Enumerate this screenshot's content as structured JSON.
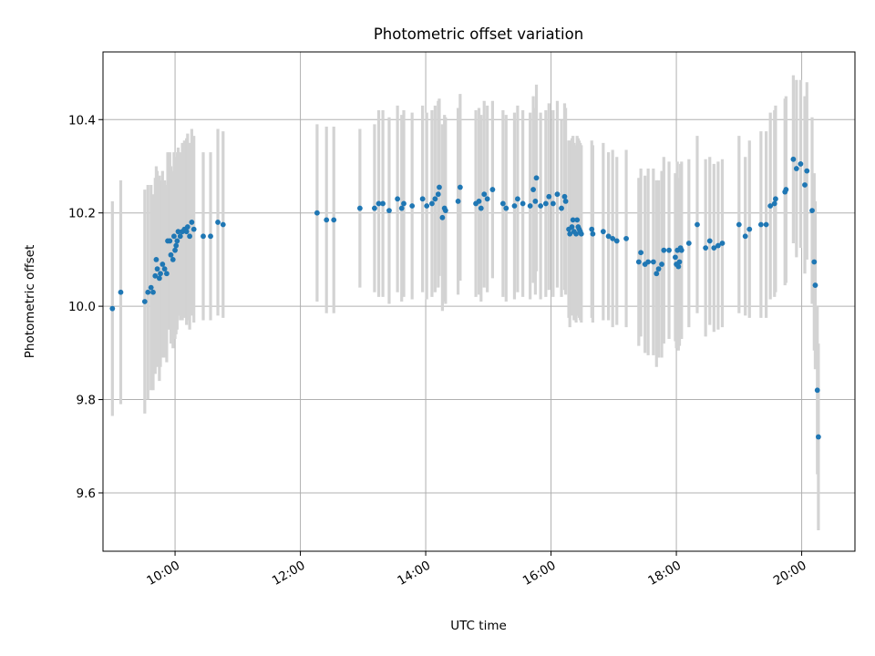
{
  "chart_data": {
    "type": "scatter",
    "title": "Photometric offset variation",
    "xlabel": "UTC time",
    "ylabel": "Photometric offset",
    "x_axis": "time",
    "x_tick_labels": [
      "10:00",
      "12:00",
      "14:00",
      "16:00",
      "18:00",
      "20:00"
    ],
    "y_tick_labels": [
      "9.6",
      "9.8",
      "10.0",
      "10.2",
      "10.4"
    ],
    "xlim": [
      "08:51",
      "20:51"
    ],
    "ylim": [
      9.475,
      10.545
    ],
    "grid": true,
    "legend": "none",
    "colors": {
      "points": "#1f77b4",
      "errorbars": "#d3d3d3"
    },
    "series": [
      {
        "points": [
          [
            "09:00",
            9.995,
            0.23
          ],
          [
            "09:08",
            10.03,
            0.24
          ],
          [
            "09:31",
            10.01,
            0.24
          ],
          [
            "09:34",
            10.03,
            0.23
          ],
          [
            "09:37",
            10.04,
            0.22
          ],
          [
            "09:39",
            10.03,
            0.21
          ],
          [
            "09:41",
            10.065,
            0.21
          ],
          [
            "09:42",
            10.1,
            0.2
          ],
          [
            "09:43",
            10.08,
            0.21
          ],
          [
            "09:45",
            10.06,
            0.22
          ],
          [
            "09:46",
            10.07,
            0.2
          ],
          [
            "09:48",
            10.09,
            0.2
          ],
          [
            "09:50",
            10.08,
            0.19
          ],
          [
            "09:52",
            10.07,
            0.19
          ],
          [
            "09:53",
            10.14,
            0.19
          ],
          [
            "09:55",
            10.14,
            0.19
          ],
          [
            "09:56",
            10.11,
            0.19
          ],
          [
            "09:58",
            10.1,
            0.19
          ],
          [
            "09:59",
            10.15,
            0.18
          ],
          [
            "10:00",
            10.12,
            0.19
          ],
          [
            "10:01",
            10.13,
            0.19
          ],
          [
            "10:02",
            10.14,
            0.19
          ],
          [
            "10:03",
            10.16,
            0.18
          ],
          [
            "10:05",
            10.15,
            0.18
          ],
          [
            "10:07",
            10.16,
            0.19
          ],
          [
            "10:09",
            10.165,
            0.19
          ],
          [
            "10:11",
            10.16,
            0.2
          ],
          [
            "10:12",
            10.17,
            0.2
          ],
          [
            "10:14",
            10.15,
            0.2
          ],
          [
            "10:16",
            10.18,
            0.2
          ],
          [
            "10:18",
            10.165,
            0.2
          ],
          [
            "10:27",
            10.15,
            0.18
          ],
          [
            "10:34",
            10.15,
            0.18
          ],
          [
            "10:41",
            10.18,
            0.2
          ],
          [
            "10:46",
            10.175,
            0.2
          ],
          [
            "12:16",
            10.2,
            0.19
          ],
          [
            "12:25",
            10.185,
            0.2
          ],
          [
            "12:32",
            10.185,
            0.2
          ],
          [
            "12:57",
            10.21,
            0.17
          ],
          [
            "13:11",
            10.21,
            0.18
          ],
          [
            "13:15",
            10.22,
            0.2
          ],
          [
            "13:19",
            10.22,
            0.2
          ],
          [
            "13:25",
            10.205,
            0.2
          ],
          [
            "13:33",
            10.23,
            0.2
          ],
          [
            "13:37",
            10.21,
            0.2
          ],
          [
            "13:39",
            10.22,
            0.2
          ],
          [
            "13:47",
            10.215,
            0.2
          ],
          [
            "13:57",
            10.23,
            0.2
          ],
          [
            "14:01",
            10.215,
            0.2
          ],
          [
            "14:06",
            10.22,
            0.2
          ],
          [
            "14:09",
            10.23,
            0.2
          ],
          [
            "14:12",
            10.24,
            0.2
          ],
          [
            "14:13",
            10.255,
            0.19
          ],
          [
            "14:16",
            10.19,
            0.2
          ],
          [
            "14:18",
            10.21,
            0.2
          ],
          [
            "14:19",
            10.205,
            0.2
          ],
          [
            "14:31",
            10.225,
            0.2
          ],
          [
            "14:33",
            10.255,
            0.2
          ],
          [
            "14:48",
            10.22,
            0.2
          ],
          [
            "14:51",
            10.225,
            0.2
          ],
          [
            "14:53",
            10.21,
            0.2
          ],
          [
            "14:56",
            10.24,
            0.2
          ],
          [
            "14:59",
            10.23,
            0.2
          ],
          [
            "15:04",
            10.25,
            0.19
          ],
          [
            "15:14",
            10.22,
            0.2
          ],
          [
            "15:17",
            10.21,
            0.2
          ],
          [
            "15:25",
            10.215,
            0.2
          ],
          [
            "15:28",
            10.23,
            0.2
          ],
          [
            "15:33",
            10.22,
            0.2
          ],
          [
            "15:40",
            10.215,
            0.2
          ],
          [
            "15:43",
            10.25,
            0.2
          ],
          [
            "15:45",
            10.225,
            0.2
          ],
          [
            "15:46",
            10.275,
            0.2
          ],
          [
            "15:50",
            10.215,
            0.2
          ],
          [
            "15:55",
            10.22,
            0.2
          ],
          [
            "15:58",
            10.235,
            0.2
          ],
          [
            "16:02",
            10.22,
            0.2
          ],
          [
            "16:06",
            10.24,
            0.2
          ],
          [
            "16:10",
            10.21,
            0.19
          ],
          [
            "16:13",
            10.235,
            0.2
          ],
          [
            "16:14",
            10.225,
            0.2
          ],
          [
            "16:17",
            10.165,
            0.19
          ],
          [
            "16:18",
            10.155,
            0.2
          ],
          [
            "16:20",
            10.17,
            0.19
          ],
          [
            "16:21",
            10.185,
            0.18
          ],
          [
            "16:22",
            10.16,
            0.19
          ],
          [
            "16:24",
            10.155,
            0.19
          ],
          [
            "16:25",
            10.185,
            0.18
          ],
          [
            "16:26",
            10.17,
            0.19
          ],
          [
            "16:27",
            10.165,
            0.19
          ],
          [
            "16:28",
            10.16,
            0.19
          ],
          [
            "16:29",
            10.155,
            0.19
          ],
          [
            "16:39",
            10.165,
            0.19
          ],
          [
            "16:40",
            10.155,
            0.19
          ],
          [
            "16:50",
            10.16,
            0.19
          ],
          [
            "16:55",
            10.15,
            0.18
          ],
          [
            "16:59",
            10.145,
            0.19
          ],
          [
            "17:03",
            10.14,
            0.18
          ],
          [
            "17:12",
            10.145,
            0.19
          ],
          [
            "17:24",
            10.095,
            0.18
          ],
          [
            "17:26",
            10.115,
            0.18
          ],
          [
            "17:30",
            10.09,
            0.19
          ],
          [
            "17:33",
            10.095,
            0.2
          ],
          [
            "17:38",
            10.095,
            0.2
          ],
          [
            "17:41",
            10.07,
            0.2
          ],
          [
            "17:43",
            10.08,
            0.19
          ],
          [
            "17:46",
            10.09,
            0.2
          ],
          [
            "17:48",
            10.12,
            0.2
          ],
          [
            "17:53",
            10.12,
            0.19
          ],
          [
            "17:59",
            10.105,
            0.18
          ],
          [
            "18:00",
            10.09,
            0.18
          ],
          [
            "18:01",
            10.12,
            0.19
          ],
          [
            "18:02",
            10.085,
            0.18
          ],
          [
            "18:03",
            10.095,
            0.18
          ],
          [
            "18:04",
            10.125,
            0.18
          ],
          [
            "18:05",
            10.12,
            0.19
          ],
          [
            "18:12",
            10.135,
            0.18
          ],
          [
            "18:20",
            10.175,
            0.19
          ],
          [
            "18:28",
            10.125,
            0.19
          ],
          [
            "18:32",
            10.14,
            0.18
          ],
          [
            "18:36",
            10.125,
            0.18
          ],
          [
            "18:40",
            10.13,
            0.18
          ],
          [
            "18:44",
            10.135,
            0.18
          ],
          [
            "19:00",
            10.175,
            0.19
          ],
          [
            "19:06",
            10.15,
            0.17
          ],
          [
            "19:10",
            10.165,
            0.19
          ],
          [
            "19:21",
            10.175,
            0.2
          ],
          [
            "19:26",
            10.175,
            0.2
          ],
          [
            "19:30",
            10.215,
            0.2
          ],
          [
            "19:34",
            10.22,
            0.2
          ],
          [
            "19:35",
            10.23,
            0.2
          ],
          [
            "19:44",
            10.245,
            0.2
          ],
          [
            "19:45",
            10.25,
            0.2
          ],
          [
            "19:52",
            10.315,
            0.18
          ],
          [
            "19:55",
            10.295,
            0.19
          ],
          [
            "19:59",
            10.305,
            0.18
          ],
          [
            "20:03",
            10.26,
            0.19
          ],
          [
            "20:05",
            10.29,
            0.19
          ],
          [
            "20:10",
            10.205,
            0.2
          ],
          [
            "20:12",
            10.095,
            0.19
          ],
          [
            "20:13",
            10.045,
            0.18
          ],
          [
            "20:15",
            9.82,
            0.18
          ],
          [
            "20:16",
            9.72,
            0.2
          ]
        ]
      }
    ]
  }
}
